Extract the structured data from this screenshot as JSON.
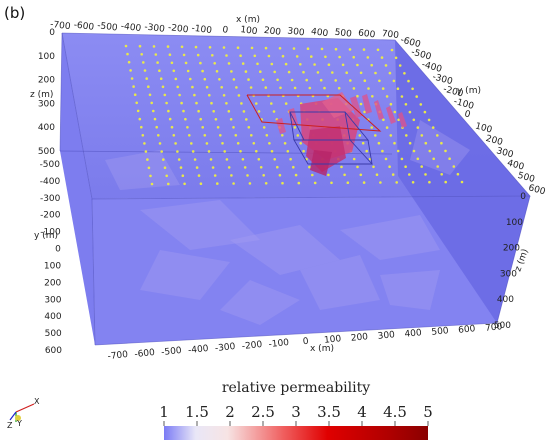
{
  "panel_label": "(b)",
  "axes": {
    "x_title_top": "x (m)",
    "x_title_bottom": "x (m)",
    "y_title_right": "y (m)",
    "y_title_left": "y (m)",
    "z_title_left": "z (m)",
    "z_title_right": "z (m)",
    "x_ticks_top": [
      "-700",
      "-600",
      "-500",
      "-400",
      "-300",
      "-200",
      "-100",
      "0",
      "100",
      "200",
      "300",
      "400",
      "500",
      "600",
      "700"
    ],
    "x_ticks_bottom": [
      "-700",
      "-600",
      "-500",
      "-400",
      "-300",
      "-200",
      "-100",
      "0",
      "100",
      "200",
      "300",
      "400",
      "500",
      "600",
      "700"
    ],
    "y_ticks_right": [
      "-600",
      "-500",
      "-400",
      "-300",
      "-200",
      "-100",
      "0",
      "100",
      "200",
      "300",
      "400",
      "500",
      "600"
    ],
    "y_ticks_left": [
      "-500",
      "-400",
      "-300",
      "-200",
      "-100",
      "0",
      "100",
      "200",
      "300",
      "400",
      "500",
      "600"
    ],
    "z_ticks_left": [
      "0",
      "100",
      "200",
      "300",
      "400",
      "500"
    ],
    "z_ticks_right": [
      "0",
      "100",
      "200",
      "300",
      "400",
      "500"
    ]
  },
  "colorbar": {
    "title": "relative permeability",
    "ticks": [
      "1",
      "1.5",
      "2",
      "2.5",
      "3",
      "3.5",
      "4",
      "4.5",
      "5"
    ],
    "colors": [
      "#7b7bf5",
      "#f7f0f0",
      "#f5a0a0",
      "#ee3030",
      "#d40000",
      "#8e0000"
    ]
  },
  "orientation": {
    "z_label": "Z",
    "y_label": "Y",
    "x_label": "X"
  },
  "colors": {
    "box_face": "#7474ee",
    "box_side": "#6666e0",
    "well_point": "#e8e84a",
    "anomaly": "#d94f83",
    "anomaly_dark": "#b32064",
    "bbox_red": "#cc1f1f",
    "bbox_blue": "#3a3aa8"
  }
}
